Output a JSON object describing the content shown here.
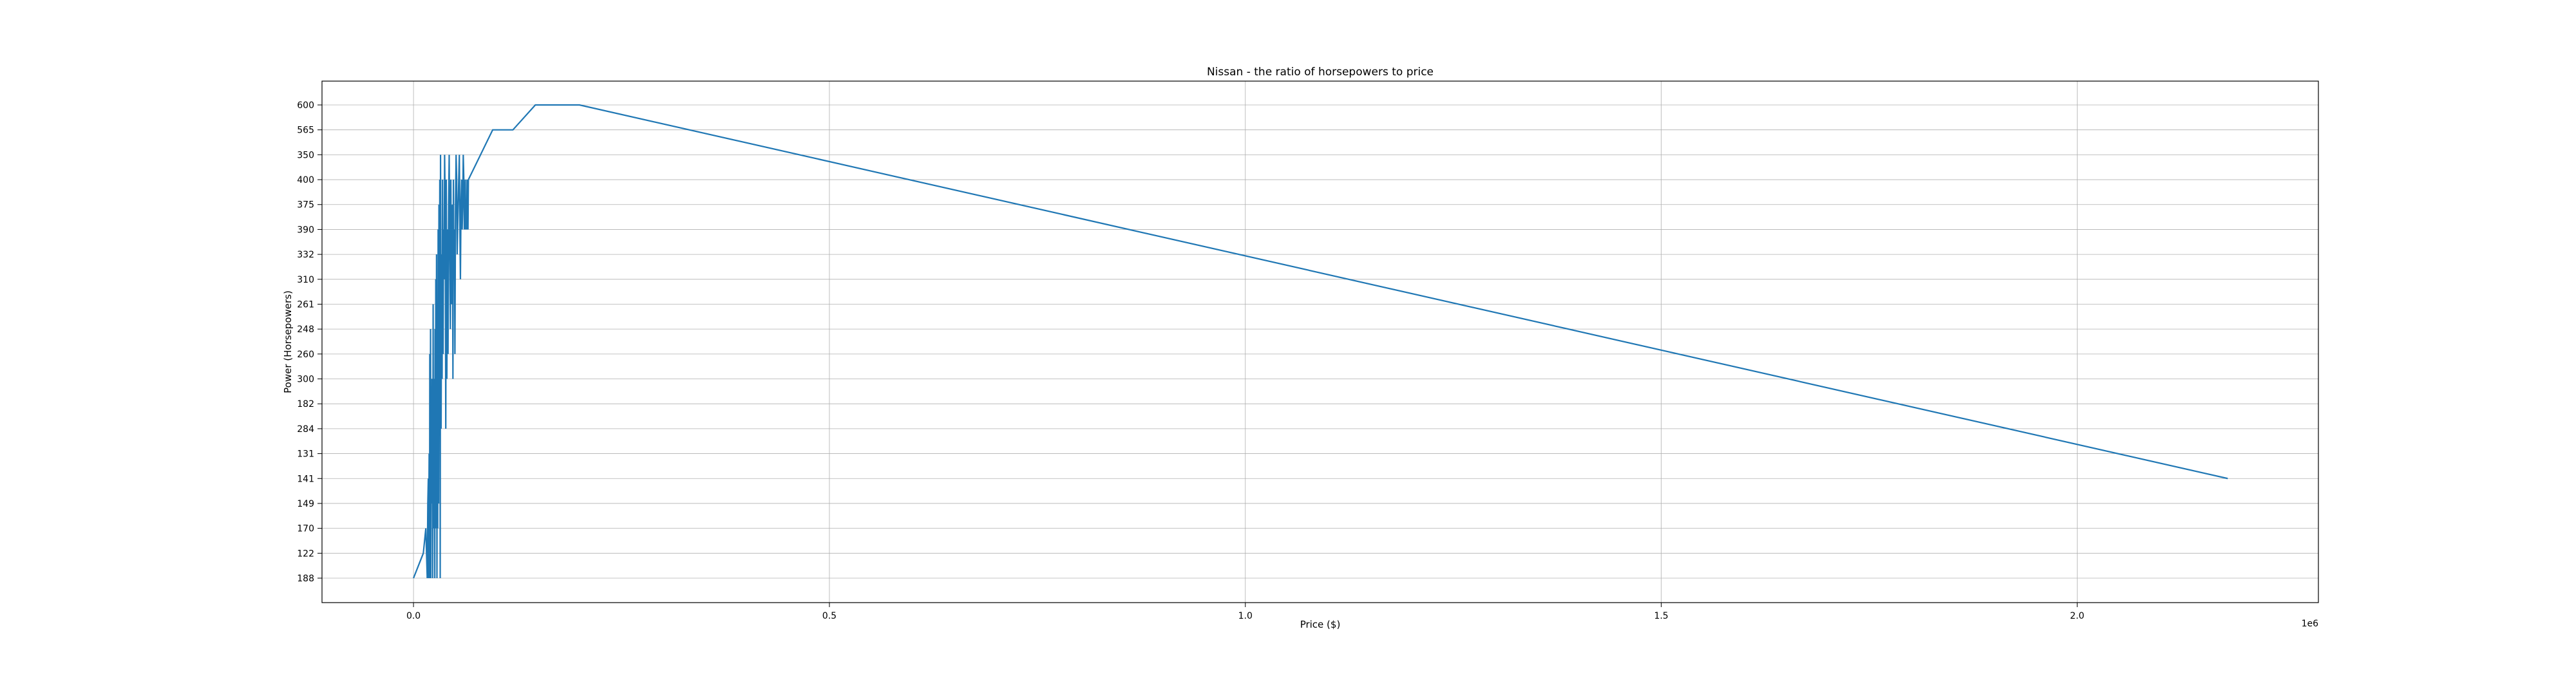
{
  "chart_data": {
    "type": "line",
    "title": "Nissan - the ratio of horsepowers to price",
    "xlabel": "Price ($)",
    "ylabel": "Power (Horsepowers)",
    "x_offset_label": "1e6",
    "xlim": [
      -0.11,
      2.29
    ],
    "x_ticks": [
      0.0,
      0.5,
      1.0,
      1.5,
      2.0
    ],
    "x_tick_labels": [
      "0.0",
      "0.5",
      "1.0",
      "1.5",
      "2.0"
    ],
    "y_categories": [
      "188",
      "122",
      "170",
      "149",
      "141",
      "131",
      "284",
      "182",
      "300",
      "260",
      "248",
      "261",
      "310",
      "332",
      "390",
      "375",
      "400",
      "350",
      "565",
      "600"
    ],
    "grid": true,
    "line_color": "#1f77b4",
    "series": [
      {
        "x": [
          0.0,
          0.0118,
          0.0148,
          0.0165,
          0.0172,
          0.0178,
          0.0181,
          0.0183,
          0.0188,
          0.0193,
          0.0196,
          0.0201,
          0.0205,
          0.0208,
          0.0214,
          0.0219,
          0.0223,
          0.0228,
          0.0231,
          0.0236,
          0.0241,
          0.0245,
          0.0251,
          0.0256,
          0.0259,
          0.0264,
          0.0268,
          0.0273,
          0.0277,
          0.0282,
          0.0285,
          0.0291,
          0.0296,
          0.0301,
          0.0306,
          0.0311,
          0.0316,
          0.0321,
          0.0325,
          0.0332,
          0.0338,
          0.0344,
          0.0349,
          0.0356,
          0.0361,
          0.0368,
          0.0374,
          0.0381,
          0.0388,
          0.0394,
          0.0401,
          0.0408,
          0.0415,
          0.0422,
          0.0429,
          0.0436,
          0.0443,
          0.0449,
          0.0456,
          0.0462,
          0.0468,
          0.0474,
          0.048,
          0.0486,
          0.0492,
          0.0498,
          0.0505,
          0.0512,
          0.0519,
          0.0525,
          0.0531,
          0.0537,
          0.0544,
          0.0551,
          0.0558,
          0.0564,
          0.0571,
          0.0578,
          0.0585,
          0.0592,
          0.0598,
          0.0605,
          0.0611,
          0.0617,
          0.0623,
          0.0628,
          0.0634,
          0.0639,
          0.0644,
          0.0649,
          0.0655,
          0.066,
          0.0952,
          0.1195,
          0.1465,
          0.1995,
          2.181
        ],
        "y": [
          "188",
          "122",
          "170",
          "188",
          "149",
          "141",
          "188",
          "170",
          "131",
          "188",
          "260",
          "170",
          "248",
          "188",
          "284",
          "149",
          "300",
          "182",
          "188",
          "261",
          "170",
          "300",
          "131",
          "188",
          "248",
          "170",
          "310",
          "141",
          "332",
          "188",
          "284",
          "170",
          "390",
          "149",
          "375",
          "182",
          "400",
          "188",
          "350",
          "284",
          "332",
          "300",
          "400",
          "260",
          "390",
          "310",
          "350",
          "375",
          "284",
          "400",
          "300",
          "390",
          "260",
          "375",
          "350",
          "332",
          "248",
          "400",
          "261",
          "390",
          "375",
          "300",
          "400",
          "310",
          "390",
          "260",
          "375",
          "350",
          "400",
          "332",
          "390",
          "375",
          "400",
          "350",
          "390",
          "310",
          "375",
          "400",
          "390",
          "375",
          "350",
          "400",
          "390",
          "375",
          "400",
          "390",
          "375",
          "390",
          "400",
          "375",
          "390",
          "400",
          "565",
          "565",
          "600",
          "600",
          "141"
        ]
      }
    ]
  }
}
